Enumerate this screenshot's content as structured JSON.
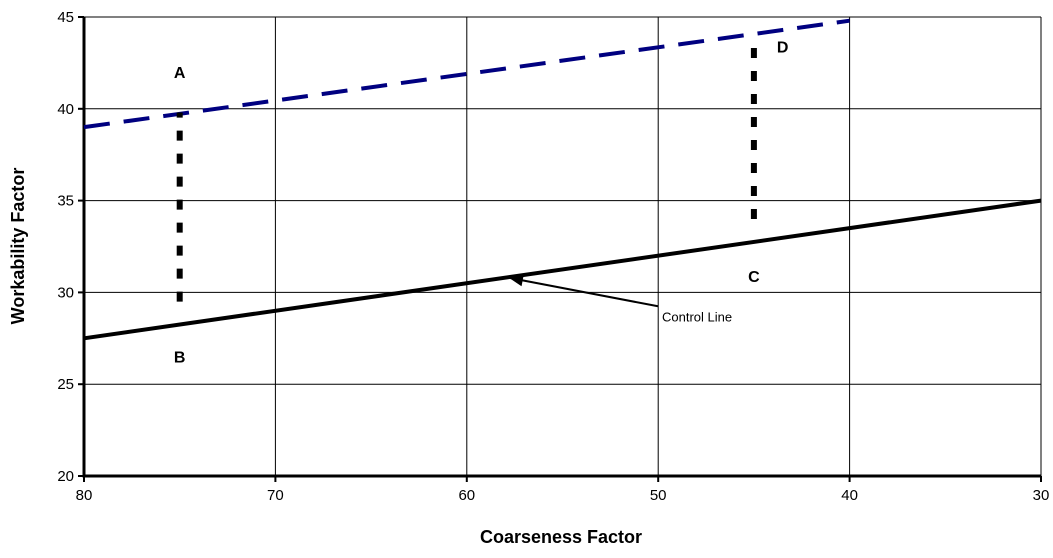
{
  "chart_data": {
    "type": "line",
    "xlabel": "Coarseness Factor",
    "ylabel": "Workability Factor",
    "xlim": [
      80,
      30
    ],
    "x_reversed": true,
    "ylim": [
      20,
      45
    ],
    "x_ticks": [
      80,
      70,
      60,
      50,
      40,
      30
    ],
    "y_ticks": [
      20,
      25,
      30,
      35,
      40,
      45
    ],
    "grid": true,
    "series": [
      {
        "name": "Control Line",
        "style": "solid",
        "color": "#000000",
        "x": [
          80,
          30
        ],
        "y": [
          27.5,
          35
        ]
      },
      {
        "name": "",
        "style": "dashed",
        "color": "#000080",
        "x": [
          80,
          40
        ],
        "y": [
          39,
          44.8
        ]
      },
      {
        "name": "",
        "style": "dotted",
        "color": "#000000",
        "x": [
          75,
          75
        ],
        "y": [
          29.5,
          39.8
        ]
      },
      {
        "name": "",
        "style": "dotted",
        "color": "#000000",
        "x": [
          45,
          45
        ],
        "y": [
          34,
          44
        ]
      }
    ],
    "point_labels": [
      {
        "text": "A",
        "x": 75,
        "y": 42
      },
      {
        "text": "B",
        "x": 75,
        "y": 26.5
      },
      {
        "text": "C",
        "x": 45,
        "y": 30.9
      },
      {
        "text": "D",
        "x": 43.5,
        "y": 43.4
      }
    ],
    "annotations": [
      {
        "text": "Control Line",
        "x": 49.8,
        "y": 28.7,
        "arrow_to": [
          57.8,
          30.8
        ]
      }
    ]
  }
}
